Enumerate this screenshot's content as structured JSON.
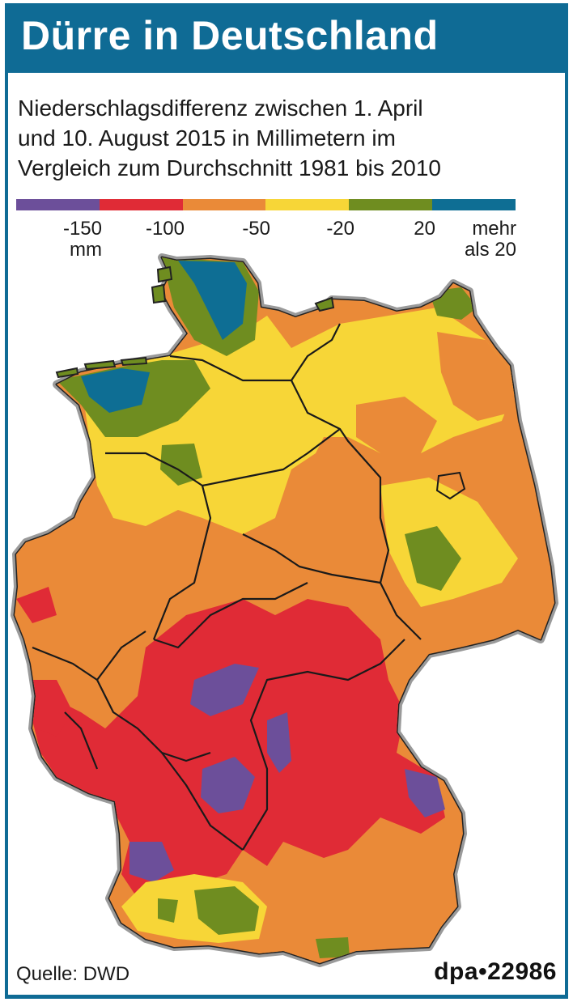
{
  "title": "Dürre in Deutschland",
  "subtitle": [
    "Niederschlagsdifferenz zwischen 1. April",
    "und 10. August 2015 in Millimetern im",
    "Vergleich zum Durchschnitt 1981 bis 2010"
  ],
  "legend": {
    "colors": [
      "#6c4f9a",
      "#e02b36",
      "#ea8a38",
      "#f7d637",
      "#6f8d20",
      "#0e6e94"
    ],
    "labels": [
      {
        "text": "-150",
        "sub": "mm"
      },
      {
        "text": "-100",
        "sub": ""
      },
      {
        "text": "-50",
        "sub": ""
      },
      {
        "text": "-20",
        "sub": ""
      },
      {
        "text": "20",
        "sub": ""
      },
      {
        "text": "mehr",
        "sub": "als 20"
      }
    ]
  },
  "source": "Quelle: DWD",
  "credit": "dpa•22986"
}
